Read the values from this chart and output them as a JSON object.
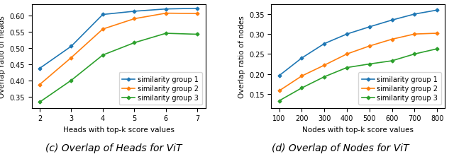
{
  "left": {
    "xlabel": "Heads with top-k score values",
    "ylabel": "Overlap ratio of heads",
    "caption": "(c) Overlap of Heads for ViT",
    "x": [
      2,
      3,
      4,
      5,
      6,
      7
    ],
    "group1": [
      0.437,
      0.505,
      0.603,
      0.613,
      0.62,
      0.622
    ],
    "group2": [
      0.387,
      0.47,
      0.558,
      0.59,
      0.607,
      0.606
    ],
    "group3": [
      0.333,
      0.4,
      0.478,
      0.516,
      0.545,
      0.542
    ],
    "ylim": [
      0.315,
      0.635
    ],
    "yticks": [
      0.35,
      0.4,
      0.45,
      0.5,
      0.55,
      0.6
    ],
    "xticks": [
      2,
      3,
      4,
      5,
      6,
      7
    ]
  },
  "right": {
    "xlabel": "Nodes with top-k score values",
    "ylabel": "Overlap ratio of nodes",
    "caption": "(d) Overlap of Nodes for ViT",
    "x": [
      100,
      200,
      300,
      400,
      500,
      600,
      700,
      800
    ],
    "group1": [
      0.196,
      0.24,
      0.276,
      0.3,
      0.318,
      0.335,
      0.35,
      0.36
    ],
    "group2": [
      0.158,
      0.195,
      0.222,
      0.25,
      0.27,
      0.287,
      0.3,
      0.302
    ],
    "group3": [
      0.133,
      0.165,
      0.193,
      0.216,
      0.225,
      0.233,
      0.25,
      0.263
    ],
    "ylim": [
      0.115,
      0.375
    ],
    "yticks": [
      0.15,
      0.2,
      0.25,
      0.3,
      0.35
    ],
    "xticks": [
      100,
      200,
      300,
      400,
      500,
      600,
      700,
      800
    ]
  },
  "colors": {
    "group1": "#1f77b4",
    "group2": "#ff7f0e",
    "group3": "#2ca02c"
  },
  "legend_labels": [
    "similarity group 1",
    "similarity group 2",
    "similarity group 3"
  ],
  "marker": "D",
  "markersize": 2.5,
  "linewidth": 1.2,
  "caption_fontsize": 10,
  "axis_label_fontsize": 7.5,
  "tick_fontsize": 7,
  "legend_fontsize": 7
}
